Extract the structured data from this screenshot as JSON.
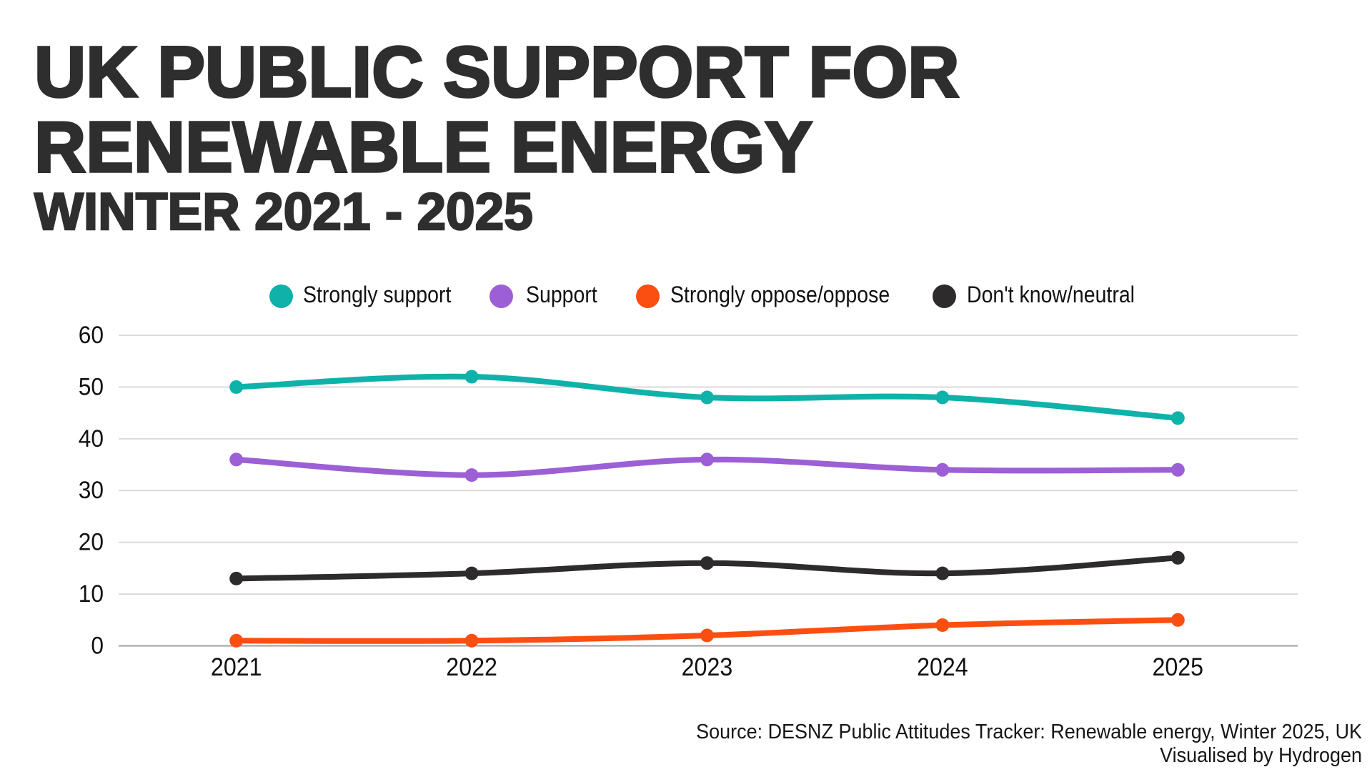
{
  "title_line1": "UK PUBLIC SUPPORT FOR",
  "title_line2": "RENEWABLE ENERGY",
  "subtitle": "WINTER 2021 - 2025",
  "source_line1": "Source: DESNZ Public Attitudes Tracker: Renewable energy, Winter 2025, UK",
  "source_line2": "Visualised by Hydrogen",
  "colors": {
    "title": "#2e2e2e",
    "grid": "#dadada",
    "axis": "#9e9e9e",
    "tick_label": "#111111"
  },
  "chart_data": {
    "type": "line",
    "categories": [
      "2021",
      "2022",
      "2023",
      "2024",
      "2025"
    ],
    "series": [
      {
        "name": "Strongly support",
        "color": "#0fb2a9",
        "values": [
          50,
          52,
          48,
          48,
          44
        ]
      },
      {
        "name": "Support",
        "color": "#9c5fd6",
        "values": [
          36,
          33,
          36,
          34,
          34
        ]
      },
      {
        "name": "Strongly oppose/oppose",
        "color": "#fb4f12",
        "values": [
          1,
          1,
          2,
          4,
          5
        ]
      },
      {
        "name": "Don't know/neutral",
        "color": "#2d2b2b",
        "values": [
          13,
          14,
          16,
          14,
          17
        ]
      }
    ],
    "title": "UK public support for renewable energy",
    "xlabel": "",
    "ylabel": "",
    "ylim": [
      0,
      60
    ],
    "yticks": [
      0,
      10,
      20,
      30,
      40,
      50,
      60
    ],
    "grid": "horizontal",
    "legend_position": "top-center"
  }
}
